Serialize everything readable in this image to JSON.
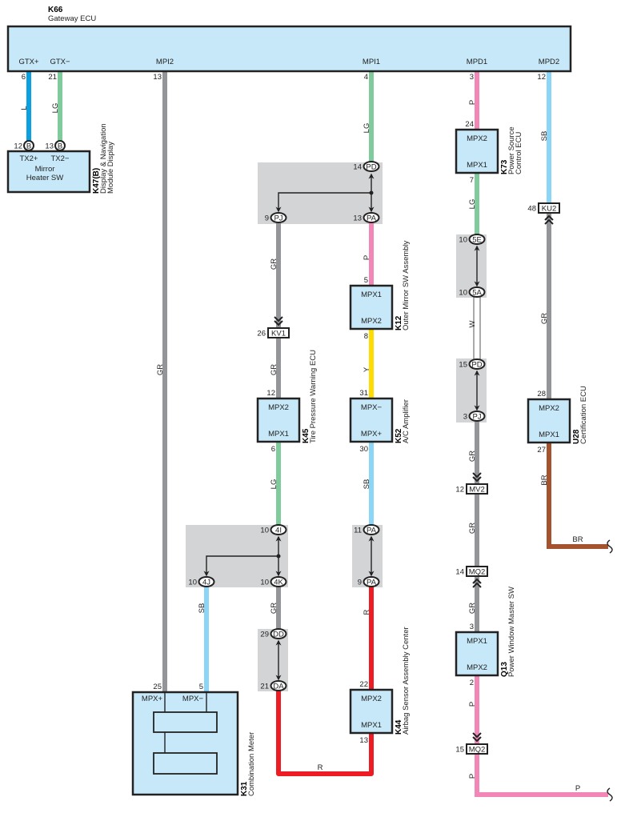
{
  "colors": {
    "L": "#0aa0e2",
    "LG": "#7fcb9b",
    "GR": "#949599",
    "P": "#f287b7",
    "SB": "#8bd6f6",
    "Y": "#ffdc00",
    "R": "#ed1c24",
    "BR": "#a5522f",
    "W": "#ffffff",
    "component_fill": "#c7e8f8",
    "junction_fill": "#d3d4d6"
  },
  "gateway": {
    "id": "K66",
    "name": "Gateway ECU",
    "pins": [
      {
        "label": "GTX+",
        "pin": "6"
      },
      {
        "label": "GTX−",
        "pin": "21"
      },
      {
        "label": "MPI2",
        "pin": "13"
      },
      {
        "label": "MPI1",
        "pin": "4"
      },
      {
        "label": "MPD1",
        "pin": "3"
      },
      {
        "label": "MPD2",
        "pin": "12"
      }
    ]
  },
  "components": {
    "k47": {
      "id": "K47(B)",
      "name": [
        "Display & Navigation",
        "Module Display"
      ],
      "inner": [
        "Mirror",
        "Heater SW"
      ],
      "pins": [
        "TX2+",
        "TX2−"
      ],
      "pin_numbers": [
        "12",
        "13"
      ],
      "connector": "B"
    },
    "k73": {
      "id": "K73",
      "name": [
        "Power Source",
        "Control ECU"
      ],
      "pins": [
        "MPX2",
        "MPX1"
      ],
      "pin_numbers": [
        "24",
        "7"
      ]
    },
    "k12": {
      "id": "K12",
      "name": [
        "Outer Mirror SW Assembly"
      ],
      "pins": [
        "MPX1",
        "MPX2"
      ],
      "pin_numbers": [
        "5",
        "8"
      ]
    },
    "k45": {
      "id": "K45",
      "name": [
        "Tire Pressure Warning ECU"
      ],
      "pins": [
        "MPX2",
        "MPX1"
      ],
      "pin_numbers": [
        "12",
        "6"
      ]
    },
    "k52": {
      "id": "K52",
      "name": [
        "A/C Amplifier"
      ],
      "pins": [
        "MPX−",
        "MPX+"
      ],
      "pin_numbers": [
        "31",
        "30"
      ]
    },
    "u28": {
      "id": "U28",
      "name": [
        "Certification ECU"
      ],
      "pins": [
        "MPX2",
        "MPX1"
      ],
      "pin_numbers": [
        "28",
        "27"
      ]
    },
    "k44": {
      "id": "K44",
      "name": [
        "Airbag Sensor Assembly Center"
      ],
      "pins": [
        "MPX2",
        "MPX1"
      ],
      "pin_numbers": [
        "22",
        "13"
      ]
    },
    "q13": {
      "id": "Q13",
      "name": [
        "Power Window Master SW"
      ],
      "pins": [
        "MPX1",
        "MPX2"
      ],
      "pin_numbers": [
        "3",
        "2"
      ]
    },
    "k31": {
      "id": "K31",
      "name": [
        "Combination Meter"
      ],
      "pins": [
        "MPX+",
        "MPX−"
      ],
      "pin_numbers": [
        "25",
        "5"
      ]
    }
  },
  "connectors": {
    "pd1": {
      "code": "PD",
      "pin": "14"
    },
    "pj1": {
      "code": "PJ",
      "pin": "9"
    },
    "pa1": {
      "code": "PA",
      "pin": "13"
    },
    "kv1": {
      "code": "KV1",
      "pin": "26"
    },
    "ku2": {
      "code": "KU2",
      "pin": "48"
    },
    "e5": {
      "code": "5E",
      "pin": "10"
    },
    "a5": {
      "code": "5A",
      "pin": "10"
    },
    "pd2": {
      "code": "PD",
      "pin": "15"
    },
    "pj2": {
      "code": "PJ",
      "pin": "3"
    },
    "mv2": {
      "code": "MV2",
      "pin": "12"
    },
    "mq2a": {
      "code": "MQ2",
      "pin": "14"
    },
    "mq2b": {
      "code": "MQ2",
      "pin": "15"
    },
    "i4": {
      "code": "4I",
      "pin": "10"
    },
    "j4": {
      "code": "4J",
      "pin": "10"
    },
    "k4": {
      "code": "4K",
      "pin": "10"
    },
    "pa2": {
      "code": "PA",
      "pin": "11"
    },
    "pa3": {
      "code": "PA",
      "pin": "9"
    },
    "dd": {
      "code": "DD",
      "pin": "29"
    },
    "da": {
      "code": "DA",
      "pin": "21"
    }
  },
  "wire_labels": {
    "l": "L",
    "lg1": "LG",
    "gr_mpi2": "GR",
    "lg2": "LG",
    "p1": "P",
    "sb1": "SB",
    "lg3": "LG",
    "gr1": "GR",
    "p2": "P",
    "gr2": "GR",
    "y": "Y",
    "w": "W",
    "lg4": "LG",
    "gr3": "GR",
    "sb2": "SB",
    "gr4": "GR",
    "gr5": "GR",
    "br1": "BR",
    "br2": "BR",
    "sb3": "SB",
    "gr6": "GR",
    "r1": "R",
    "r2": "R",
    "gr7": "GR",
    "p3": "P",
    "p4": "P",
    "p5": "P"
  }
}
